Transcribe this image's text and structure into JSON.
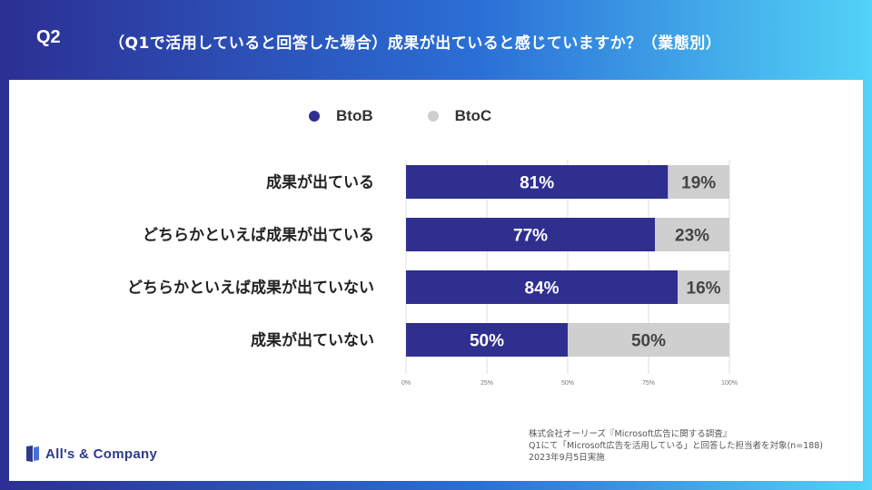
{
  "header": {
    "q_label": "Q2",
    "question": "（Q1で活用していると回答した場合）成果が出ていると感じていますか？（業態別）"
  },
  "colors": {
    "btob": "#2e2f8f",
    "btoc": "#cfcfcf",
    "grid": "#dddddd"
  },
  "legend": {
    "btob": "BtoB",
    "btoc": "BtoC"
  },
  "chart_data": {
    "type": "bar",
    "orientation": "horizontal",
    "stacked": true,
    "categories": [
      "成果が出ている",
      "どちらかといえば成果が出ている",
      "どちらかといえば成果が出ていない",
      "成果が出ていない"
    ],
    "series": [
      {
        "name": "BtoB",
        "values": [
          81,
          77,
          84,
          50
        ]
      },
      {
        "name": "BtoC",
        "values": [
          19,
          23,
          16,
          50
        ]
      }
    ],
    "xticks": [
      "0%",
      "25%",
      "50%",
      "75%",
      "100%"
    ],
    "xlim": [
      0,
      100
    ],
    "grid": true,
    "legend_position": "top",
    "value_suffix": "%"
  },
  "footnote": {
    "line1": "株式会社オーリーズ『Microsoft広告に関する調査』",
    "line2": "Q1にて「Microsoft広告を活用している」と回答した担当者を対象(n=188)",
    "line3": "2023年9月5日実施"
  },
  "logo": {
    "text": "All's & Company"
  }
}
